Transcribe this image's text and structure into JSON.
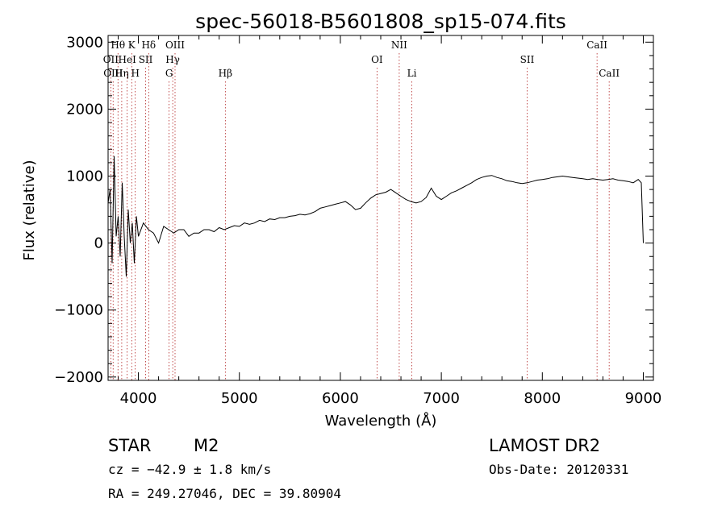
{
  "chart_data": {
    "type": "line",
    "title": "spec-56018-B5601808_sp15-074.fits",
    "xlabel": "Wavelength (Å)",
    "ylabel": "Flux (relative)",
    "xlim": [
      3700,
      9100
    ],
    "ylim": [
      -2050,
      3100
    ],
    "xticks": [
      4000,
      5000,
      6000,
      7000,
      8000,
      9000
    ],
    "yticks": [
      -2000,
      -1000,
      0,
      1000,
      2000,
      3000
    ],
    "grid": false,
    "series": [
      {
        "x": [
          3700,
          3720,
          3740,
          3760,
          3780,
          3800,
          3820,
          3840,
          3860,
          3880,
          3900,
          3920,
          3940,
          3960,
          3980,
          4000,
          4050,
          4100,
          4150,
          4200,
          4250,
          4300,
          4350,
          4400,
          4450,
          4500,
          4550,
          4600,
          4650,
          4700,
          4750,
          4800,
          4850,
          4900,
          4950,
          5000,
          5050,
          5100,
          5150,
          5200,
          5250,
          5300,
          5350,
          5400,
          5450,
          5500,
          5550,
          5600,
          5650,
          5700,
          5750,
          5800,
          5850,
          5900,
          5950,
          6000,
          6050,
          6100,
          6150,
          6200,
          6250,
          6300,
          6350,
          6400,
          6450,
          6500,
          6550,
          6600,
          6650,
          6700,
          6750,
          6800,
          6850,
          6900,
          6950,
          7000,
          7050,
          7100,
          7150,
          7200,
          7250,
          7300,
          7350,
          7400,
          7450,
          7500,
          7550,
          7600,
          7650,
          7700,
          7750,
          7800,
          7850,
          7900,
          7950,
          8000,
          8050,
          8100,
          8150,
          8200,
          8250,
          8300,
          8350,
          8400,
          8450,
          8500,
          8550,
          8600,
          8650,
          8700,
          8750,
          8800,
          8850,
          8900,
          8950,
          8980,
          9000
        ],
        "y": [
          600,
          800,
          -300,
          1300,
          100,
          400,
          -200,
          900,
          100,
          -500,
          500,
          0,
          300,
          -300,
          400,
          100,
          300,
          200,
          150,
          0,
          250,
          200,
          150,
          200,
          200,
          100,
          150,
          150,
          200,
          200,
          170,
          230,
          200,
          230,
          260,
          250,
          300,
          280,
          300,
          340,
          320,
          360,
          350,
          380,
          380,
          400,
          410,
          430,
          420,
          440,
          470,
          520,
          540,
          560,
          580,
          600,
          620,
          570,
          500,
          520,
          600,
          670,
          720,
          740,
          760,
          800,
          750,
          700,
          650,
          620,
          600,
          620,
          680,
          820,
          700,
          650,
          700,
          750,
          780,
          820,
          860,
          900,
          950,
          980,
          1000,
          1010,
          980,
          960,
          930,
          920,
          900,
          890,
          900,
          920,
          940,
          950,
          960,
          980,
          990,
          1000,
          990,
          980,
          970,
          960,
          950,
          960,
          950,
          940,
          950,
          960,
          940,
          930,
          920,
          900,
          950,
          900,
          0
        ]
      }
    ],
    "lines": [
      {
        "label": "Hθ",
        "x": 3798,
        "row": 1
      },
      {
        "label": "OII",
        "x": 3727,
        "row": 2
      },
      {
        "label": "OIII",
        "x": 3750,
        "row": 3
      },
      {
        "label": "K",
        "x": 3934,
        "row": 1
      },
      {
        "label": "HeI",
        "x": 3889,
        "row": 2
      },
      {
        "label": "Hη",
        "x": 3835,
        "row": 3
      },
      {
        "label": "Hδ",
        "x": 4102,
        "row": 1
      },
      {
        "label": "SII",
        "x": 4072,
        "row": 2
      },
      {
        "label": "H",
        "x": 3969,
        "row": 3
      },
      {
        "label": "OIII",
        "x": 4363,
        "row": 1
      },
      {
        "label": "Hγ",
        "x": 4340,
        "row": 2
      },
      {
        "label": "G",
        "x": 4304,
        "row": 3
      },
      {
        "label": "Hβ",
        "x": 4861,
        "row": 3
      },
      {
        "label": "OI",
        "x": 6363,
        "row": 2
      },
      {
        "label": "NII",
        "x": 6583,
        "row": 1
      },
      {
        "label": "Li",
        "x": 6708,
        "row": 3
      },
      {
        "label": "SII",
        "x": 7850,
        "row": 2
      },
      {
        "label": "CaII",
        "x": 8542,
        "row": 1
      },
      {
        "label": "CaII",
        "x": 8662,
        "row": 3
      }
    ]
  },
  "info": {
    "object_class": "STAR",
    "subclass": "M2",
    "survey": "LAMOST DR2",
    "redshift": "cz = −42.9 ± 1.8 km/s",
    "obs_date": "Obs-Date: 20120331",
    "coords": "RA = 249.27046, DEC =  39.80904"
  }
}
